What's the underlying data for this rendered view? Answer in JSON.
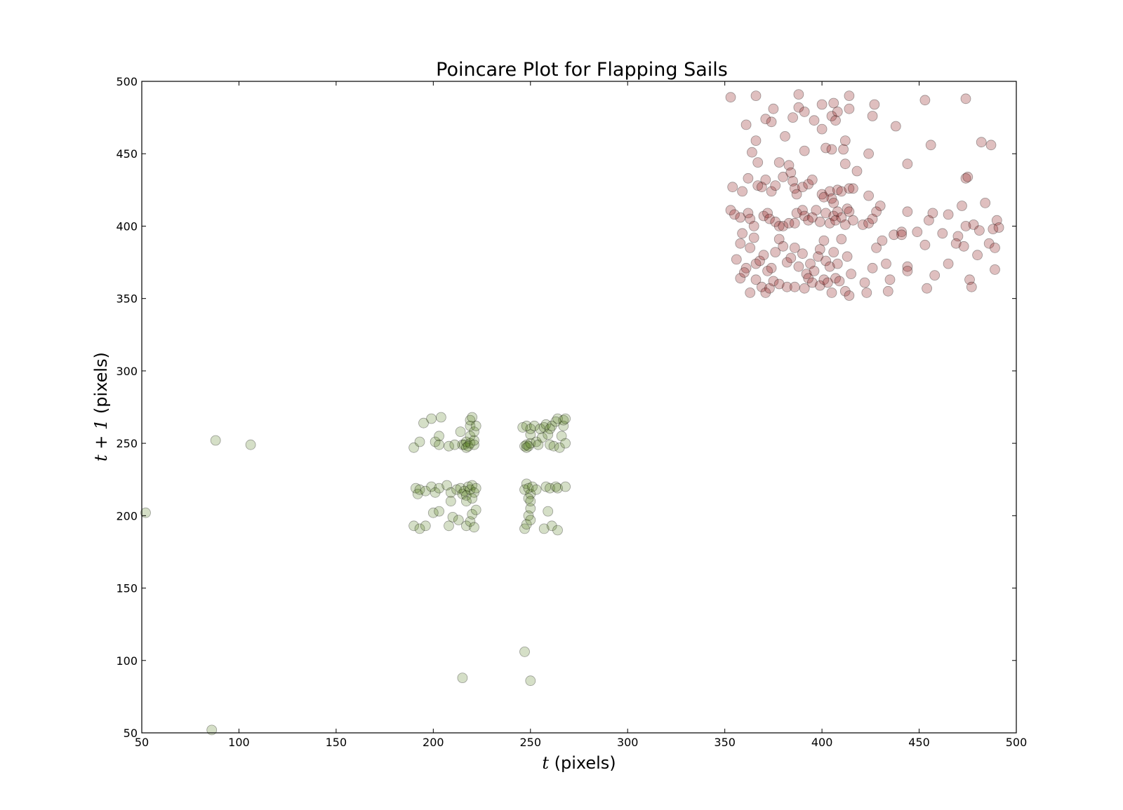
{
  "chart_data": {
    "type": "scatter",
    "title": "Poincare Plot for Flapping Sails",
    "xlabel": {
      "var": "t",
      "unit": " (pixels)"
    },
    "ylabel": {
      "var": "t + 1",
      "unit": " (pixels)"
    },
    "xlim": [
      50,
      500
    ],
    "ylim": [
      50,
      500
    ],
    "x_ticks": [
      50,
      100,
      150,
      200,
      250,
      300,
      350,
      400,
      450,
      500
    ],
    "y_ticks": [
      50,
      100,
      150,
      200,
      250,
      300,
      350,
      400,
      450,
      500
    ],
    "grid": false,
    "legend": "none",
    "series": [
      {
        "color": "#8b1a1a",
        "alpha": 0.28,
        "points": [
          [
            353,
            489
          ],
          [
            366,
            490
          ],
          [
            388,
            491
          ],
          [
            414,
            490
          ],
          [
            453,
            487
          ],
          [
            474,
            488
          ],
          [
            361,
            470
          ],
          [
            371,
            474
          ],
          [
            374,
            472
          ],
          [
            375,
            481
          ],
          [
            381,
            462
          ],
          [
            385,
            475
          ],
          [
            388,
            482
          ],
          [
            391,
            479
          ],
          [
            396,
            473
          ],
          [
            400,
            484
          ],
          [
            400,
            467
          ],
          [
            405,
            476
          ],
          [
            406,
            485
          ],
          [
            407,
            473
          ],
          [
            408,
            479
          ],
          [
            411,
            453
          ],
          [
            412,
            459
          ],
          [
            414,
            481
          ],
          [
            424,
            450
          ],
          [
            426,
            476
          ],
          [
            427,
            484
          ],
          [
            438,
            469
          ],
          [
            364,
            451
          ],
          [
            366,
            459
          ],
          [
            367,
            444
          ],
          [
            378,
            444
          ],
          [
            391,
            452
          ],
          [
            402,
            454
          ],
          [
            405,
            453
          ],
          [
            412,
            443
          ],
          [
            456,
            456
          ],
          [
            482,
            458
          ],
          [
            487,
            456
          ],
          [
            354,
            427
          ],
          [
            359,
            424
          ],
          [
            362,
            433
          ],
          [
            367,
            428
          ],
          [
            369,
            427
          ],
          [
            371,
            432
          ],
          [
            374,
            424
          ],
          [
            376,
            428
          ],
          [
            380,
            434
          ],
          [
            383,
            442
          ],
          [
            384,
            437
          ],
          [
            385,
            431
          ],
          [
            386,
            426
          ],
          [
            387,
            422
          ],
          [
            390,
            427
          ],
          [
            393,
            429
          ],
          [
            395,
            432
          ],
          [
            400,
            422
          ],
          [
            401,
            420
          ],
          [
            404,
            424
          ],
          [
            405,
            419
          ],
          [
            406,
            416
          ],
          [
            408,
            425
          ],
          [
            410,
            424
          ],
          [
            414,
            426
          ],
          [
            416,
            426
          ],
          [
            418,
            438
          ],
          [
            424,
            421
          ],
          [
            444,
            443
          ],
          [
            474,
            433
          ],
          [
            475,
            434
          ],
          [
            353,
            411
          ],
          [
            355,
            408
          ],
          [
            358,
            406
          ],
          [
            362,
            409
          ],
          [
            363,
            405
          ],
          [
            365,
            400
          ],
          [
            370,
            407
          ],
          [
            372,
            409
          ],
          [
            373,
            405
          ],
          [
            376,
            403
          ],
          [
            378,
            400
          ],
          [
            380,
            400
          ],
          [
            383,
            402
          ],
          [
            386,
            402
          ],
          [
            387,
            409
          ],
          [
            390,
            411
          ],
          [
            391,
            407
          ],
          [
            393,
            404
          ],
          [
            395,
            406
          ],
          [
            397,
            411
          ],
          [
            399,
            403
          ],
          [
            402,
            409
          ],
          [
            404,
            402
          ],
          [
            406,
            407
          ],
          [
            407,
            404
          ],
          [
            408,
            410
          ],
          [
            410,
            406
          ],
          [
            412,
            401
          ],
          [
            413,
            412
          ],
          [
            414,
            410
          ],
          [
            416,
            404
          ],
          [
            421,
            401
          ],
          [
            424,
            402
          ],
          [
            426,
            405
          ],
          [
            428,
            410
          ],
          [
            430,
            414
          ],
          [
            437,
            394
          ],
          [
            441,
            396
          ],
          [
            444,
            410
          ],
          [
            449,
            396
          ],
          [
            455,
            404
          ],
          [
            457,
            409
          ],
          [
            462,
            395
          ],
          [
            465,
            408
          ],
          [
            470,
            393
          ],
          [
            472,
            414
          ],
          [
            474,
            400
          ],
          [
            478,
            401
          ],
          [
            481,
            397
          ],
          [
            484,
            416
          ],
          [
            488,
            398
          ],
          [
            490,
            404
          ],
          [
            491,
            399
          ],
          [
            356,
            377
          ],
          [
            358,
            388
          ],
          [
            359,
            395
          ],
          [
            361,
            371
          ],
          [
            363,
            385
          ],
          [
            365,
            392
          ],
          [
            366,
            374
          ],
          [
            368,
            376
          ],
          [
            370,
            380
          ],
          [
            372,
            369
          ],
          [
            374,
            371
          ],
          [
            376,
            382
          ],
          [
            378,
            391
          ],
          [
            380,
            386
          ],
          [
            382,
            375
          ],
          [
            384,
            378
          ],
          [
            386,
            385
          ],
          [
            388,
            372
          ],
          [
            390,
            381
          ],
          [
            392,
            367
          ],
          [
            394,
            374
          ],
          [
            396,
            369
          ],
          [
            398,
            379
          ],
          [
            399,
            384
          ],
          [
            401,
            390
          ],
          [
            402,
            376
          ],
          [
            404,
            372
          ],
          [
            406,
            382
          ],
          [
            408,
            374
          ],
          [
            410,
            391
          ],
          [
            413,
            379
          ],
          [
            415,
            367
          ],
          [
            426,
            371
          ],
          [
            428,
            385
          ],
          [
            431,
            390
          ],
          [
            433,
            374
          ],
          [
            441,
            394
          ],
          [
            444,
            372
          ],
          [
            453,
            387
          ],
          [
            465,
            374
          ],
          [
            469,
            388
          ],
          [
            473,
            386
          ],
          [
            476,
            363
          ],
          [
            480,
            380
          ],
          [
            486,
            388
          ],
          [
            489,
            385
          ],
          [
            358,
            364
          ],
          [
            360,
            368
          ],
          [
            363,
            354
          ],
          [
            366,
            363
          ],
          [
            369,
            358
          ],
          [
            371,
            354
          ],
          [
            373,
            357
          ],
          [
            375,
            362
          ],
          [
            378,
            360
          ],
          [
            382,
            358
          ],
          [
            386,
            358
          ],
          [
            391,
            357
          ],
          [
            393,
            364
          ],
          [
            395,
            361
          ],
          [
            399,
            359
          ],
          [
            401,
            363
          ],
          [
            403,
            361
          ],
          [
            405,
            354
          ],
          [
            407,
            364
          ],
          [
            409,
            362
          ],
          [
            412,
            355
          ],
          [
            414,
            352
          ],
          [
            422,
            361
          ],
          [
            423,
            354
          ],
          [
            434,
            355
          ],
          [
            435,
            363
          ],
          [
            444,
            369
          ],
          [
            454,
            357
          ],
          [
            458,
            366
          ],
          [
            477,
            358
          ],
          [
            489,
            370
          ]
        ]
      },
      {
        "color": "#4e7a14",
        "alpha": 0.24,
        "points": [
          [
            88,
            252
          ],
          [
            106,
            249
          ],
          [
            52,
            202
          ],
          [
            86,
            52
          ],
          [
            215,
            88
          ],
          [
            247,
            106
          ],
          [
            250,
            86
          ],
          [
            190,
            247
          ],
          [
            193,
            251
          ],
          [
            195,
            264
          ],
          [
            199,
            267
          ],
          [
            201,
            251
          ],
          [
            203,
            255
          ],
          [
            203,
            249
          ],
          [
            204,
            268
          ],
          [
            208,
            248
          ],
          [
            211,
            249
          ],
          [
            214,
            258
          ],
          [
            215,
            249
          ],
          [
            216,
            249
          ],
          [
            217,
            251
          ],
          [
            217,
            247
          ],
          [
            218,
            248
          ],
          [
            219,
            250
          ],
          [
            219,
            255
          ],
          [
            219,
            262
          ],
          [
            219,
            266
          ],
          [
            220,
            268
          ],
          [
            221,
            249
          ],
          [
            221,
            252
          ],
          [
            221,
            258
          ],
          [
            222,
            262
          ],
          [
            246,
            261
          ],
          [
            247,
            248
          ],
          [
            248,
            247
          ],
          [
            248,
            249
          ],
          [
            248,
            262
          ],
          [
            249,
            248
          ],
          [
            250,
            250
          ],
          [
            250,
            256
          ],
          [
            250,
            260
          ],
          [
            252,
            262
          ],
          [
            253,
            251
          ],
          [
            254,
            249
          ],
          [
            255,
            260
          ],
          [
            256,
            254
          ],
          [
            257,
            261
          ],
          [
            258,
            263
          ],
          [
            259,
            256
          ],
          [
            260,
            249
          ],
          [
            260,
            260
          ],
          [
            261,
            262
          ],
          [
            262,
            248
          ],
          [
            263,
            265
          ],
          [
            264,
            267
          ],
          [
            265,
            247
          ],
          [
            266,
            255
          ],
          [
            267,
            262
          ],
          [
            267,
            266
          ],
          [
            268,
            267
          ],
          [
            268,
            250
          ],
          [
            191,
            219
          ],
          [
            192,
            215
          ],
          [
            193,
            218
          ],
          [
            196,
            217
          ],
          [
            199,
            220
          ],
          [
            201,
            216
          ],
          [
            203,
            219
          ],
          [
            207,
            221
          ],
          [
            209,
            216
          ],
          [
            212,
            218
          ],
          [
            214,
            219
          ],
          [
            215,
            215
          ],
          [
            216,
            217
          ],
          [
            217,
            214
          ],
          [
            218,
            220
          ],
          [
            219,
            218
          ],
          [
            220,
            221
          ],
          [
            221,
            216
          ],
          [
            222,
            219
          ],
          [
            247,
            218
          ],
          [
            248,
            222
          ],
          [
            249,
            219
          ],
          [
            250,
            215
          ],
          [
            251,
            220
          ],
          [
            253,
            218
          ],
          [
            258,
            220
          ],
          [
            260,
            219
          ],
          [
            263,
            220
          ],
          [
            264,
            219
          ],
          [
            268,
            220
          ],
          [
            190,
            193
          ],
          [
            193,
            191
          ],
          [
            196,
            193
          ],
          [
            200,
            202
          ],
          [
            203,
            203
          ],
          [
            208,
            193
          ],
          [
            210,
            199
          ],
          [
            213,
            197
          ],
          [
            217,
            193
          ],
          [
            219,
            196
          ],
          [
            220,
            201
          ],
          [
            221,
            192
          ],
          [
            222,
            204
          ],
          [
            247,
            191
          ],
          [
            248,
            194
          ],
          [
            249,
            200
          ],
          [
            250,
            197
          ],
          [
            250,
            205
          ],
          [
            257,
            191
          ],
          [
            259,
            203
          ],
          [
            261,
            193
          ],
          [
            264,
            190
          ],
          [
            209,
            210
          ],
          [
            217,
            210
          ],
          [
            220,
            212
          ],
          [
            249,
            212
          ],
          [
            250,
            210
          ]
        ]
      }
    ]
  }
}
